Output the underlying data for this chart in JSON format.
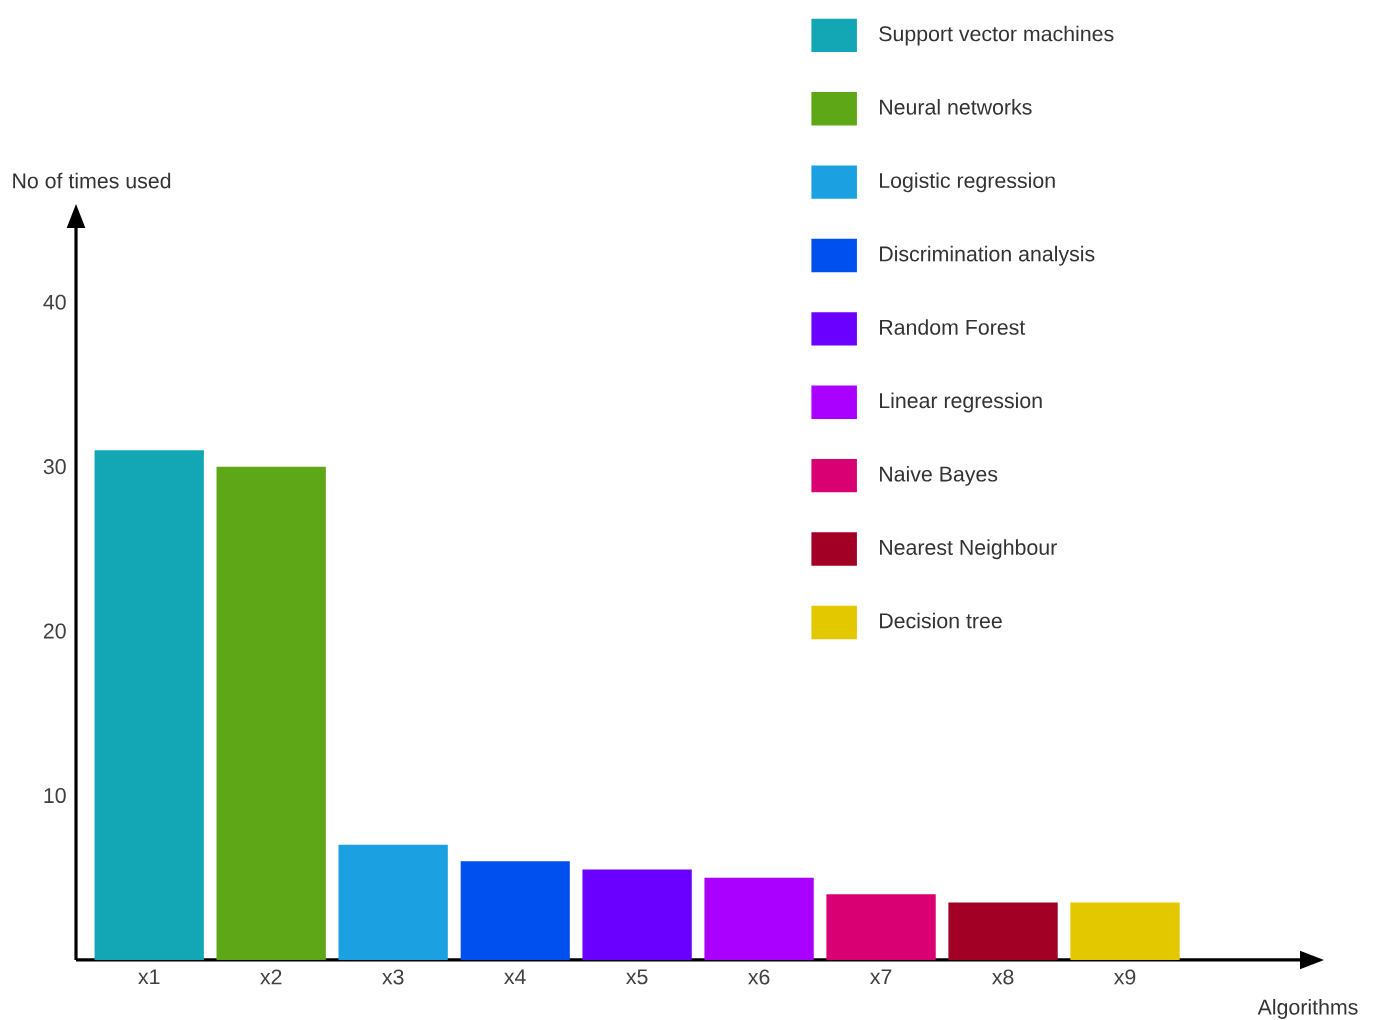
{
  "chart_data": {
    "type": "bar",
    "xlabel": "Algorithms",
    "ylabel": "No of times used",
    "categories": [
      "x1",
      "x2",
      "x3",
      "x4",
      "x5",
      "x6",
      "x7",
      "x8",
      "x9"
    ],
    "series": [
      {
        "name": "Support vector machines",
        "color": "#13a7b5",
        "values": [
          31,
          null,
          null,
          null,
          null,
          null,
          null,
          null,
          null
        ]
      },
      {
        "name": "Neural networks",
        "color": "#5ea818",
        "values": [
          null,
          30,
          null,
          null,
          null,
          null,
          null,
          null,
          null
        ]
      },
      {
        "name": "Logistic regression",
        "color": "#1ba1e2",
        "values": [
          null,
          null,
          7,
          null,
          null,
          null,
          null,
          null,
          null
        ]
      },
      {
        "name": "Discrimination analysis",
        "color": "#0050ef",
        "values": [
          null,
          null,
          null,
          6,
          null,
          null,
          null,
          null,
          null
        ]
      },
      {
        "name": "Random Forest",
        "color": "#6a00ff",
        "values": [
          null,
          null,
          null,
          null,
          5.5,
          null,
          null,
          null,
          null
        ]
      },
      {
        "name": "Linear regression",
        "color": "#aa00ff",
        "values": [
          null,
          null,
          null,
          null,
          null,
          5,
          null,
          null,
          null
        ]
      },
      {
        "name": "Naive Bayes",
        "color": "#d80073",
        "values": [
          null,
          null,
          null,
          null,
          null,
          null,
          4,
          null,
          null
        ]
      },
      {
        "name": "Nearest Neighbour",
        "color": "#a20025",
        "values": [
          null,
          null,
          null,
          null,
          null,
          null,
          null,
          3.5,
          null
        ]
      },
      {
        "name": "Decision tree",
        "color": "#e3c800",
        "values": [
          null,
          null,
          null,
          null,
          null,
          null,
          null,
          null,
          3.5
        ]
      }
    ],
    "ylim": [
      0,
      45
    ],
    "yticks": [
      10,
      20,
      30,
      40
    ],
    "legend": "top right"
  }
}
